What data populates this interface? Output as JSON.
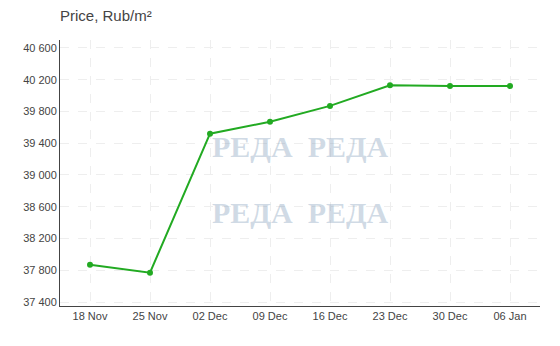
{
  "chart_data": {
    "type": "line",
    "title": "Price, Rub/m²",
    "categories": [
      "18 Nov",
      "25 Nov",
      "02 Dec",
      "09 Dec",
      "16 Dec",
      "23 Dec",
      "30 Dec",
      "06 Jan"
    ],
    "values": [
      37870,
      37770,
      39520,
      39670,
      39870,
      40130,
      40120,
      40120
    ],
    "color": "#22aa22",
    "marker": "circle",
    "ylim": [
      37350,
      40700
    ],
    "yticks": [
      {
        "value": 37400,
        "label": "37 400"
      },
      {
        "value": 37800,
        "label": "37 800"
      },
      {
        "value": 38200,
        "label": "38 200"
      },
      {
        "value": 38600,
        "label": "38 600"
      },
      {
        "value": 39000,
        "label": "39 000"
      },
      {
        "value": 39400,
        "label": "39 400"
      },
      {
        "value": 39800,
        "label": "39 800"
      },
      {
        "value": 40200,
        "label": "40 200"
      },
      {
        "value": 40600,
        "label": "40 600"
      }
    ],
    "grid": true,
    "annotations": [
      "РЕДА  РЕДА",
      "РЕДА  РЕДА"
    ]
  }
}
